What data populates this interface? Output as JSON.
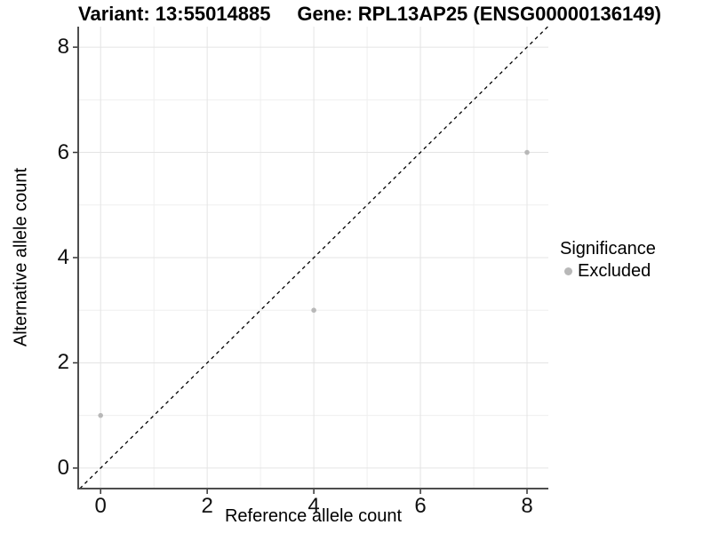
{
  "titles": {
    "variant": "Variant: 13:55014885",
    "gene": "Gene: RPL13AP25 (ENSG00000136149)"
  },
  "chart_data": {
    "type": "scatter",
    "xlabel": "Reference allele count",
    "ylabel": "Alternative allele count",
    "xlim": [
      -0.42,
      8.4
    ],
    "ylim": [
      -0.39,
      8.39
    ],
    "x_ticks": [
      0,
      2,
      4,
      6,
      8
    ],
    "y_ticks": [
      0,
      2,
      4,
      6,
      8
    ],
    "x_minor_ticks": [
      1,
      3,
      5,
      7
    ],
    "y_minor_ticks": [
      1,
      3,
      5,
      7
    ],
    "grid": true,
    "identity_line": {
      "equation": "y = x",
      "style": "dashed",
      "color": "#000000"
    },
    "series": [
      {
        "name": "Excluded",
        "color": "#b8b8b8",
        "points": [
          {
            "x": 0,
            "y": 1
          },
          {
            "x": 4,
            "y": 3
          },
          {
            "x": 8,
            "y": 6
          }
        ]
      }
    ],
    "legend": {
      "title": "Significance",
      "position": "right",
      "entries": [
        {
          "label": "Excluded",
          "color": "#b8b8b8"
        }
      ]
    }
  },
  "colors": {
    "background": "#ffffff",
    "grid_major": "#e4e4e4",
    "grid_minor": "#efefef",
    "axis_line": "#4d4d4d",
    "tick_mark": "#333333"
  }
}
